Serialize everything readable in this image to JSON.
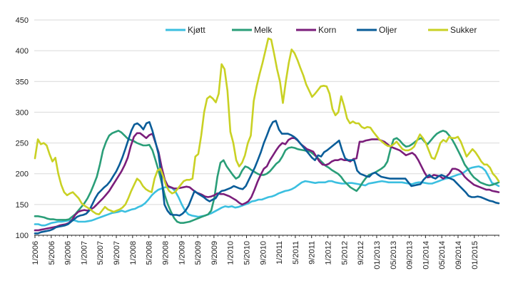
{
  "chart_data": {
    "type": "line",
    "title": "",
    "xlabel": "",
    "ylabel": "",
    "ylim": [
      100,
      450
    ],
    "yticks": [
      100,
      150,
      200,
      250,
      300,
      350,
      400,
      450
    ],
    "grid": "horizontal",
    "legend_position": "top-right",
    "x_tick_labels": [
      "1/2006",
      "5/2006",
      "9/2006",
      "1/2007",
      "5/2007",
      "9/2007",
      "1/2008",
      "5/2008",
      "9/2008",
      "1/2009",
      "5/2009",
      "9/2009",
      "1/2010",
      "5/2010",
      "9/2010",
      "1/2011",
      "5/2011",
      "9/2011",
      "1/2012",
      "5/2012",
      "9/2012",
      "01/2013",
      "05/2013",
      "09/2013",
      "01/2014",
      "05/2014",
      "09/2014",
      "01/2015"
    ],
    "x_last_label": "01/2015",
    "series": [
      {
        "name": "Kjøtt",
        "color": "#3bbfe0",
        "values": [
          118,
          118,
          116,
          116,
          118,
          120,
          121,
          122,
          122,
          123,
          124,
          125,
          124,
          122,
          122,
          122,
          123,
          124,
          126,
          128,
          130,
          132,
          134,
          136,
          137,
          138,
          140,
          138,
          140,
          142,
          143,
          146,
          148,
          152,
          158,
          165,
          170,
          174,
          176,
          178,
          178,
          177,
          172,
          162,
          150,
          140,
          134,
          132,
          131,
          130,
          131,
          132,
          134,
          136,
          139,
          142,
          145,
          147,
          146,
          147,
          145,
          146,
          148,
          150,
          152,
          155,
          156,
          158,
          158,
          160,
          162,
          163,
          165,
          168,
          170,
          172,
          173,
          175,
          178,
          182,
          186,
          188,
          187,
          186,
          185,
          186,
          186,
          186,
          188,
          188,
          186,
          185,
          184,
          184,
          185,
          185,
          184,
          183,
          182,
          181,
          184,
          185,
          186,
          187,
          188,
          187,
          186,
          186,
          186,
          186,
          186,
          185,
          184,
          183,
          185,
          186,
          186,
          185,
          184,
          184,
          186,
          188,
          190,
          192,
          193,
          195,
          197,
          199,
          200,
          204,
          208,
          210,
          211,
          212,
          210,
          205,
          195,
          185,
          183,
          180
        ]
      },
      {
        "name": "Melk",
        "color": "#2a9e78",
        "values": [
          131,
          131,
          130,
          129,
          127,
          126,
          126,
          125,
          125,
          125,
          125,
          126,
          130,
          134,
          140,
          146,
          152,
          160,
          170,
          182,
          195,
          215,
          238,
          252,
          262,
          266,
          268,
          270,
          267,
          262,
          257,
          255,
          253,
          250,
          248,
          246,
          246,
          247,
          238,
          222,
          205,
          185,
          165,
          150,
          138,
          128,
          122,
          120,
          120,
          121,
          122,
          124,
          126,
          128,
          130,
          132,
          134,
          140,
          160,
          195,
          218,
          222,
          212,
          205,
          198,
          192,
          195,
          205,
          212,
          210,
          206,
          203,
          200,
          198,
          198,
          200,
          204,
          210,
          216,
          220,
          228,
          238,
          242,
          243,
          242,
          240,
          239,
          238,
          237,
          236,
          232,
          228,
          223,
          218,
          213,
          210,
          206,
          203,
          200,
          195,
          188,
          183,
          178,
          175,
          172,
          178,
          186,
          193,
          198,
          200,
          202,
          205,
          208,
          212,
          220,
          240,
          256,
          258,
          254,
          248,
          244,
          245,
          248,
          252,
          256,
          258,
          252,
          248,
          254,
          260,
          265,
          268,
          270,
          268,
          262,
          255,
          246,
          236,
          226,
          215,
          208,
          200,
          194,
          190,
          186,
          184,
          182,
          181,
          182,
          184,
          186
        ]
      },
      {
        "name": "Korn",
        "color": "#7b1e7b",
        "values": [
          108,
          108,
          109,
          110,
          111,
          112,
          113,
          114,
          116,
          117,
          118,
          120,
          125,
          133,
          138,
          140,
          141,
          140,
          142,
          145,
          150,
          155,
          160,
          166,
          172,
          180,
          188,
          196,
          204,
          214,
          226,
          245,
          260,
          266,
          266,
          262,
          258,
          263,
          265,
          250,
          235,
          210,
          190,
          180,
          178,
          176,
          176,
          177,
          178,
          179,
          178,
          174,
          170,
          168,
          166,
          163,
          162,
          163,
          165,
          168,
          167,
          167,
          165,
          163,
          160,
          157,
          153,
          150,
          152,
          155,
          162,
          174,
          187,
          198,
          208,
          212,
          222,
          230,
          238,
          245,
          250,
          248,
          255,
          258,
          258,
          254,
          248,
          244,
          240,
          238,
          236,
          228,
          220,
          215,
          214,
          216,
          220,
          222,
          222,
          224,
          222,
          222,
          220,
          224,
          225,
          252,
          252,
          254,
          255,
          256,
          256,
          256,
          254,
          252,
          248,
          244,
          242,
          240,
          238,
          234,
          230,
          232,
          234,
          230,
          222,
          212,
          202,
          194,
          195,
          198,
          197,
          196,
          192,
          195,
          200,
          208,
          208,
          206,
          202,
          195,
          190,
          186,
          182,
          180,
          178,
          176,
          174,
          174,
          172,
          171,
          170
        ]
      },
      {
        "name": "Oljer",
        "color": "#0a5d99",
        "values": [
          103,
          103,
          105,
          106,
          107,
          108,
          110,
          113,
          114,
          115,
          116,
          118,
          122,
          126,
          130,
          132,
          133,
          135,
          140,
          150,
          160,
          168,
          173,
          178,
          182,
          188,
          196,
          204,
          214,
          226,
          240,
          255,
          270,
          280,
          282,
          278,
          272,
          282,
          284,
          270,
          252,
          232,
          195,
          150,
          140,
          134,
          133,
          133,
          132,
          135,
          140,
          148,
          160,
          172,
          168,
          165,
          162,
          158,
          155,
          158,
          160,
          168,
          172,
          173,
          175,
          177,
          180,
          178,
          176,
          175,
          180,
          190,
          200,
          210,
          222,
          235,
          250,
          262,
          275,
          284,
          286,
          272,
          265,
          265,
          265,
          263,
          260,
          256,
          250,
          244,
          238,
          232,
          226,
          222,
          230,
          228,
          235,
          238,
          242,
          246,
          250,
          254,
          238,
          225,
          222,
          222,
          222,
          205,
          200,
          198,
          196,
          195,
          200,
          202,
          198,
          195,
          194,
          193,
          192,
          192,
          192,
          192,
          192,
          192,
          186,
          180,
          181,
          182,
          183,
          190,
          195,
          198,
          194,
          192,
          196,
          198,
          196,
          194,
          192,
          190,
          185,
          180,
          175,
          170,
          164,
          162,
          162,
          163,
          162,
          160,
          158,
          156,
          155,
          153,
          152
        ]
      },
      {
        "name": "Sukker",
        "color": "#c9d124",
        "values": [
          225,
          256,
          248,
          250,
          246,
          232,
          220,
          226,
          200,
          182,
          170,
          165,
          168,
          170,
          165,
          160,
          152,
          148,
          145,
          142,
          138,
          135,
          134,
          140,
          146,
          142,
          140,
          138,
          140,
          142,
          145,
          150,
          160,
          172,
          182,
          192,
          188,
          180,
          175,
          172,
          170,
          192,
          205,
          208,
          195,
          180,
          172,
          168,
          170,
          176,
          182,
          188,
          190,
          190,
          192,
          228,
          232,
          262,
          300,
          322,
          326,
          322,
          316,
          330,
          378,
          370,
          335,
          268,
          250,
          222,
          212,
          218,
          230,
          250,
          262,
          318,
          342,
          362,
          380,
          400,
          420,
          418,
          395,
          370,
          350,
          315,
          350,
          380,
          402,
          396,
          385,
          372,
          360,
          345,
          335,
          325,
          330,
          336,
          342,
          343,
          342,
          330,
          305,
          295,
          300,
          326,
          310,
          290,
          282,
          285,
          282,
          282,
          276,
          274,
          276,
          275,
          268,
          262,
          256,
          252,
          248,
          245,
          245,
          248,
          252,
          246,
          240,
          238,
          238,
          240,
          244,
          254,
          264,
          258,
          250,
          238,
          226,
          224,
          236,
          250,
          255,
          252,
          260,
          258,
          258,
          260,
          252,
          240,
          228,
          234,
          240,
          235,
          228,
          220,
          215,
          215,
          210,
          200,
          195,
          188
        ]
      }
    ]
  }
}
